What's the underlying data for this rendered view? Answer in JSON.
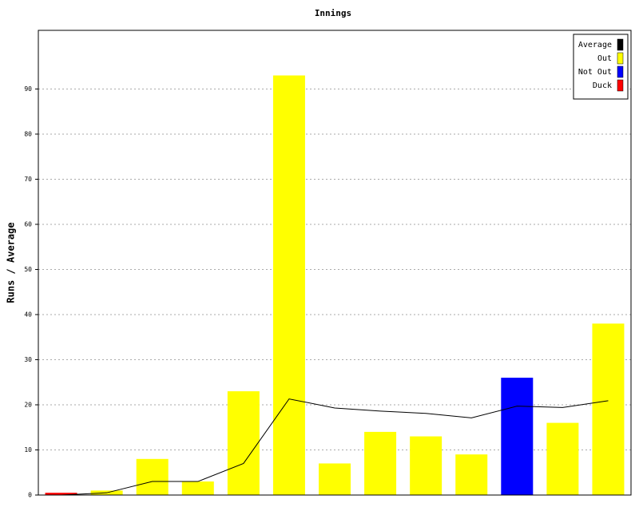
{
  "chart_data": {
    "type": "bar_line",
    "title": "Innings",
    "y_label": "Runs / Average",
    "categories": [
      null,
      null,
      null,
      null,
      null,
      null,
      null,
      null,
      null,
      null,
      null,
      null,
      null
    ],
    "series": [
      {
        "name": "Average",
        "type": "line",
        "color": "#000000",
        "values": [
          0,
          0.5,
          3,
          3,
          7,
          21.3,
          19.3,
          18.6,
          18.1,
          17.1,
          19.7,
          19.4,
          20.9
        ]
      },
      {
        "name": "Out",
        "type": "bar",
        "color": "#ffff00",
        "values": [
          null,
          1,
          8,
          3,
          23,
          93,
          7,
          14,
          13,
          9,
          null,
          16,
          38
        ]
      },
      {
        "name": "Not Out",
        "type": "bar",
        "color": "#0000ff",
        "values": [
          null,
          null,
          null,
          null,
          null,
          null,
          null,
          null,
          null,
          null,
          26,
          null,
          null
        ]
      },
      {
        "name": "Duck",
        "type": "bar",
        "color": "#ff0000",
        "values": [
          0.5,
          null,
          null,
          null,
          null,
          null,
          null,
          null,
          null,
          null,
          null,
          null,
          null
        ]
      }
    ],
    "ylim": [
      0,
      103
    ],
    "yticks": [
      0,
      10,
      20,
      30,
      40,
      50,
      60,
      70,
      80,
      90
    ],
    "grid": true,
    "legend": "top-right"
  }
}
